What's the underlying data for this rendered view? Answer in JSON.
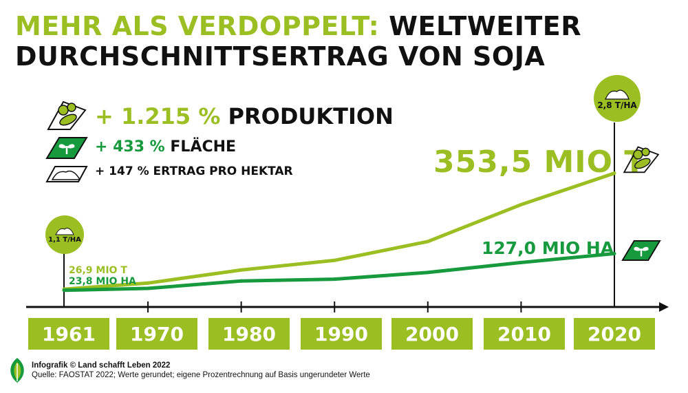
{
  "title": {
    "accent": "MEHR ALS VERDOPPELT:",
    "rest_line1": "WELTWEITER",
    "line2": "DURCHSCHNITTSERTRAG VON SOJA"
  },
  "stats": [
    {
      "pct": "+ 1.215 %",
      "label": "PRODUKTION",
      "icon": "soybean-pods-icon"
    },
    {
      "pct": "+ 433 %",
      "label": "FLÄCHE",
      "icon": "field-seedling-icon"
    },
    {
      "pct": "+ 147 %",
      "label": "ERTRAG PRO HEKTAR",
      "icon": "harvest-pile-icon"
    }
  ],
  "badges": {
    "start": "1,1 T/HA",
    "end": "2,8 T/HA"
  },
  "callouts": {
    "start_production": "26,9 MIO T",
    "start_area": "23,8 MIO HA",
    "end_production": "353,5 MIO T",
    "end_area": "127,0 MIO HA"
  },
  "colors": {
    "production": "#9bbf22",
    "area": "#179a3e",
    "axis": "#111111",
    "year_box": "#9bbf22"
  },
  "chart_data": {
    "type": "line",
    "x": [
      1961,
      1970,
      1980,
      1990,
      2000,
      2010,
      2020
    ],
    "xlim": [
      1961,
      2020
    ],
    "series": [
      {
        "name": "PRODUKTION",
        "unit": "MIO T",
        "values": [
          26.9,
          44,
          81,
          108,
          161,
          265,
          353.5
        ]
      },
      {
        "name": "FLÄCHE",
        "unit": "MIO HA",
        "values": [
          23.8,
          29,
          50,
          55,
          74,
          102,
          127.0
        ]
      }
    ],
    "tick_labels": [
      "1961",
      "1970",
      "1980",
      "1990",
      "2000",
      "2010",
      "2020"
    ]
  },
  "footer": {
    "line1": "Infografik © Land schafft Leben 2022",
    "line2": "Quelle: FAOSTAT 2022; Werte gerundet; eigene Prozentrechnung auf Basis ungerundeter Werte"
  }
}
